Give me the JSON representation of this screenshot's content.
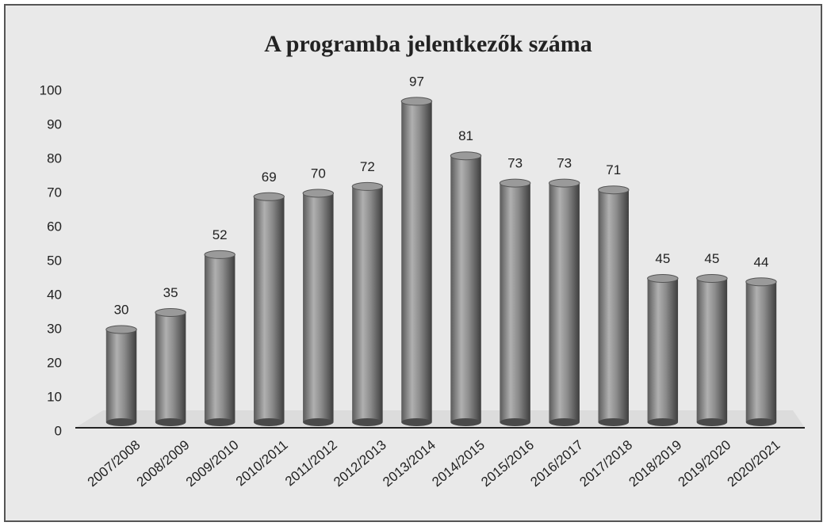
{
  "chart_data": {
    "type": "bar",
    "title": "A programba jelentkezők száma",
    "categories": [
      "2007/2008",
      "2008/2009",
      "2009/2010",
      "2010/2011",
      "2011/2012",
      "2012/2013",
      "2013/2014",
      "2014/2015",
      "2015/2016",
      "2016/2017",
      "2017/2018",
      "2018/2019",
      "2019/2020",
      "2020/2021"
    ],
    "values": [
      30,
      35,
      52,
      69,
      70,
      72,
      97,
      81,
      73,
      73,
      71,
      45,
      45,
      44
    ],
    "color": "#8a8a8a",
    "ylim": [
      0,
      100
    ],
    "yticks": [
      0,
      10,
      20,
      30,
      40,
      50,
      60,
      70,
      80,
      90,
      100
    ],
    "grid": false
  }
}
